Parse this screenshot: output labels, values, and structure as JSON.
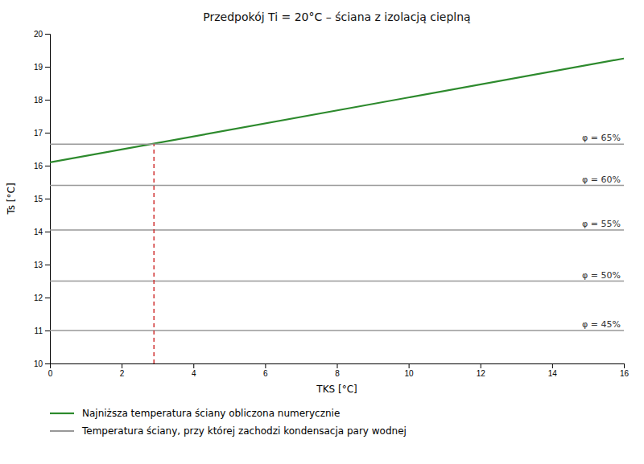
{
  "chart_data": {
    "type": "line",
    "title": "Przedpokój Ti = 20°C – ściana z izolacją cieplną",
    "x_label": "TKS [°C]",
    "y_label": "Ts [°C]",
    "xlim": [
      0,
      16
    ],
    "ylim": [
      10,
      20
    ],
    "xticks": [
      0,
      2,
      4,
      6,
      8,
      10,
      12,
      14,
      16
    ],
    "yticks": [
      10,
      11,
      12,
      13,
      14,
      15,
      16,
      17,
      18,
      19,
      20
    ],
    "grid": false,
    "legend": "bottom",
    "series": [
      {
        "name": "Najniższa temperatura ściany obliczona numerycznie",
        "type": "line",
        "color": "#2d8a2d",
        "x": [
          0,
          16
        ],
        "values": [
          16.1,
          19.25
        ]
      },
      {
        "name": "Temperatura ściany, przy której zachodzi kondensacja pary wodnej",
        "type": "hline",
        "color": "#999999",
        "values": [
          16.65,
          15.4,
          14.05,
          12.5,
          11.0
        ],
        "labels": [
          "φ = 65%",
          "φ = 60%",
          "φ = 55%",
          "φ = 50%",
          "φ = 45%"
        ]
      },
      {
        "type": "line",
        "color": "#cc2222",
        "line_style": "dashed",
        "x": [
          2.9,
          2.9
        ],
        "values": [
          10.0,
          16.65
        ]
      }
    ]
  }
}
